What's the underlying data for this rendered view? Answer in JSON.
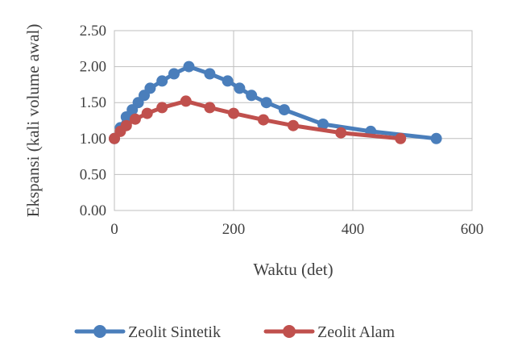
{
  "chart_data": {
    "type": "line",
    "xlabel": "Waktu (det)",
    "ylabel": "Ekspansi (kali volume awal)",
    "xlim": [
      0,
      600
    ],
    "ylim": [
      0,
      2.5
    ],
    "xticks": [
      "0",
      "200",
      "400",
      "600"
    ],
    "yticks": [
      "0.00",
      "0.50",
      "1.00",
      "1.50",
      "2.00",
      "2.50"
    ],
    "grid": true,
    "legend_position": "bottom",
    "series": [
      {
        "name": "Zeolit Sintetik",
        "color": "#4A7EBB",
        "x": [
          0,
          10,
          20,
          30,
          40,
          50,
          60,
          80,
          100,
          125,
          160,
          190,
          210,
          230,
          255,
          285,
          350,
          430,
          540
        ],
        "y": [
          1.0,
          1.15,
          1.3,
          1.4,
          1.5,
          1.6,
          1.7,
          1.8,
          1.9,
          2.0,
          1.9,
          1.8,
          1.7,
          1.6,
          1.5,
          1.4,
          1.2,
          1.1,
          1.0
        ]
      },
      {
        "name": "Zeolit Alam",
        "color": "#C0504D",
        "x": [
          0,
          10,
          20,
          35,
          55,
          80,
          120,
          160,
          200,
          250,
          300,
          380,
          480
        ],
        "y": [
          1.0,
          1.1,
          1.18,
          1.27,
          1.35,
          1.43,
          1.52,
          1.43,
          1.35,
          1.26,
          1.18,
          1.08,
          1.0
        ]
      }
    ]
  }
}
